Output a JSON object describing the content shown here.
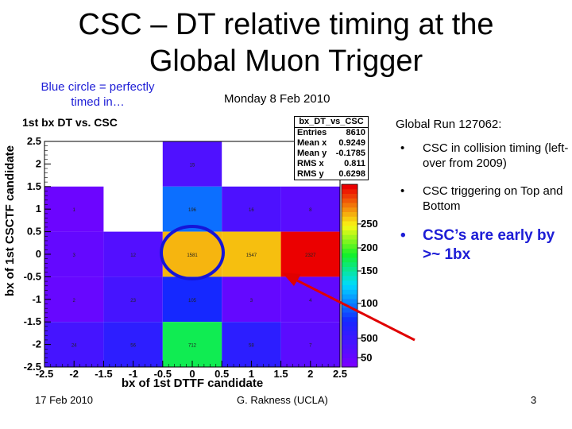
{
  "slide": {
    "title_line1": "CSC – DT relative timing at the",
    "title_line2": "Global Muon Trigger",
    "annotation_line1": "Blue circle = perfectly",
    "annotation_line2": "timed in…",
    "date_line": "Monday 8 Feb 2010",
    "footer_date": "17 Feb 2010",
    "footer_author": "G. Rakness (UCLA)",
    "page_number": "3",
    "right_panel": {
      "run_title": "Global Run 127062:",
      "bullet_char": "•",
      "bullet1": "CSC in collision timing (left-over from 2009)",
      "bullet2": "CSC triggering on Top and Bottom",
      "bullet3": "CSC’s are early by >~ 1bx"
    },
    "colors": {
      "blue_text": "#1d1dd6",
      "circle": "#1515d8",
      "arrow": "#e00000"
    }
  },
  "stats_box": {
    "title": "bx_DT_vs_CSC",
    "rows": [
      {
        "label": "Entries",
        "value": "8610"
      },
      {
        "label": "Mean x",
        "value": "0.9249"
      },
      {
        "label": "Mean y",
        "value": "-0.1785"
      },
      {
        "label": "RMS x",
        "value": "0.811"
      },
      {
        "label": "RMS y",
        "value": "0.6298"
      }
    ]
  },
  "chart_data": {
    "type": "heatmap",
    "title": "1st bx DT vs. CSC",
    "xlabel": "bx of 1st DTTF candidate",
    "ylabel": "bx of 1st CSCTF candidate",
    "xlim": [
      -2.5,
      2.5
    ],
    "ylim": [
      -2.5,
      2.5
    ],
    "x_bins": [
      -2,
      -1,
      0,
      1,
      2
    ],
    "y_bins": [
      -2,
      -1,
      0,
      1,
      2
    ],
    "x_ticks": [
      "-2.5",
      "-2",
      "-1.5",
      "-1",
      "-0.5",
      "0",
      "0.5",
      "1",
      "1.5",
      "2",
      "2.5"
    ],
    "y_ticks": [
      "-2.5",
      "-2",
      "-1.5",
      "-1",
      "-0.5",
      "0",
      "0.5",
      "1",
      "1.5",
      "2",
      "2.5"
    ],
    "cells": [
      {
        "x": 0,
        "y": 2,
        "value": 15,
        "label": "15"
      },
      {
        "x": -2,
        "y": 1,
        "value": 1,
        "label": "1"
      },
      {
        "x": 0,
        "y": 1,
        "value": 196,
        "label": "196"
      },
      {
        "x": 1,
        "y": 1,
        "value": 16,
        "label": "16"
      },
      {
        "x": 2,
        "y": 1,
        "value": 8,
        "label": "8"
      },
      {
        "x": -2,
        "y": 0,
        "value": 3,
        "label": "3"
      },
      {
        "x": -1,
        "y": 0,
        "value": 12,
        "label": "12"
      },
      {
        "x": 0,
        "y": 0,
        "value": 1581,
        "label": "1581"
      },
      {
        "x": 1,
        "y": 0,
        "value": 1547,
        "label": "1547"
      },
      {
        "x": 2,
        "y": 0,
        "value": 2327,
        "label": "2327"
      },
      {
        "x": -2,
        "y": -1,
        "value": 2,
        "label": "2"
      },
      {
        "x": -1,
        "y": -1,
        "value": 23,
        "label": "23"
      },
      {
        "x": 0,
        "y": -1,
        "value": 105,
        "label": "105"
      },
      {
        "x": 1,
        "y": -1,
        "value": 3,
        "label": "3"
      },
      {
        "x": 2,
        "y": -1,
        "value": 4,
        "label": "4"
      },
      {
        "x": -2,
        "y": -2,
        "value": 24,
        "label": "24"
      },
      {
        "x": -1,
        "y": -2,
        "value": 56,
        "label": "56"
      },
      {
        "x": 0,
        "y": -2,
        "value": 712,
        "label": "712"
      },
      {
        "x": 1,
        "y": -2,
        "value": 58,
        "label": "58"
      },
      {
        "x": 2,
        "y": -2,
        "value": 7,
        "label": "7"
      }
    ],
    "colorbar_ticks": [
      "50",
      "100",
      "150",
      "200",
      "250",
      "500"
    ],
    "colormap": "ROOT rainbow (violet → blue → cyan → green → yellow → red)",
    "grid": false,
    "highlight_cell": {
      "x": 0,
      "y": 0
    }
  }
}
